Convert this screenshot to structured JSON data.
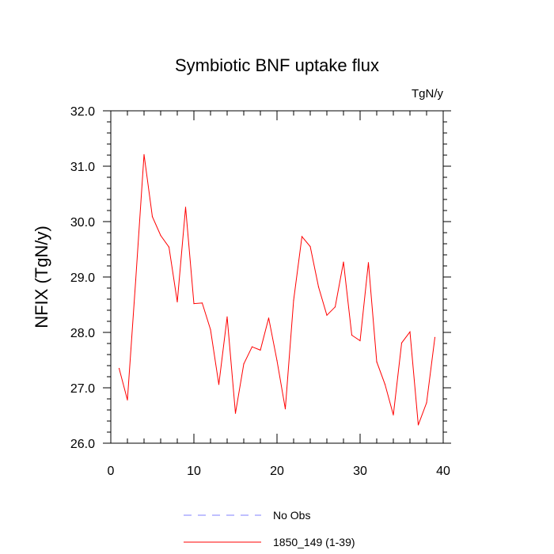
{
  "chart_data": {
    "type": "line",
    "title": "Symbiotic BNF uptake flux",
    "units_label": "TgN/y",
    "ylabel": "NFIX  (TgN/y)",
    "xlabel": "",
    "xlim": [
      0,
      40
    ],
    "ylim": [
      26.0,
      32.0
    ],
    "x_ticks": [
      0,
      10,
      20,
      30,
      40
    ],
    "y_ticks": [
      "26.0",
      "27.0",
      "28.0",
      "29.0",
      "30.0",
      "31.0",
      "32.0"
    ],
    "grid": false,
    "legend_position": "bottom-center",
    "series": [
      {
        "name": "No Obs",
        "color": "#8080ff",
        "style": "dashed",
        "x": [],
        "values": []
      },
      {
        "name": "1850_149 (1-39)",
        "color": "#ff0000",
        "style": "solid",
        "x": [
          1,
          2,
          3,
          4,
          5,
          6,
          7,
          8,
          9,
          10,
          11,
          12,
          13,
          14,
          15,
          16,
          17,
          18,
          19,
          20,
          21,
          22,
          23,
          24,
          25,
          26,
          27,
          28,
          29,
          30,
          31,
          32,
          33,
          34,
          35,
          36,
          37,
          38,
          39
        ],
        "values": [
          27.35,
          26.78,
          28.95,
          31.21,
          30.09,
          29.75,
          29.54,
          28.55,
          30.26,
          28.52,
          28.53,
          28.05,
          27.06,
          28.28,
          26.54,
          27.43,
          27.74,
          27.68,
          28.26,
          27.49,
          26.62,
          28.58,
          29.73,
          29.55,
          28.82,
          28.31,
          28.46,
          29.27,
          27.95,
          27.85,
          29.26,
          27.47,
          27.06,
          26.51,
          27.81,
          28.01,
          26.33,
          26.73,
          27.91
        ]
      }
    ]
  }
}
